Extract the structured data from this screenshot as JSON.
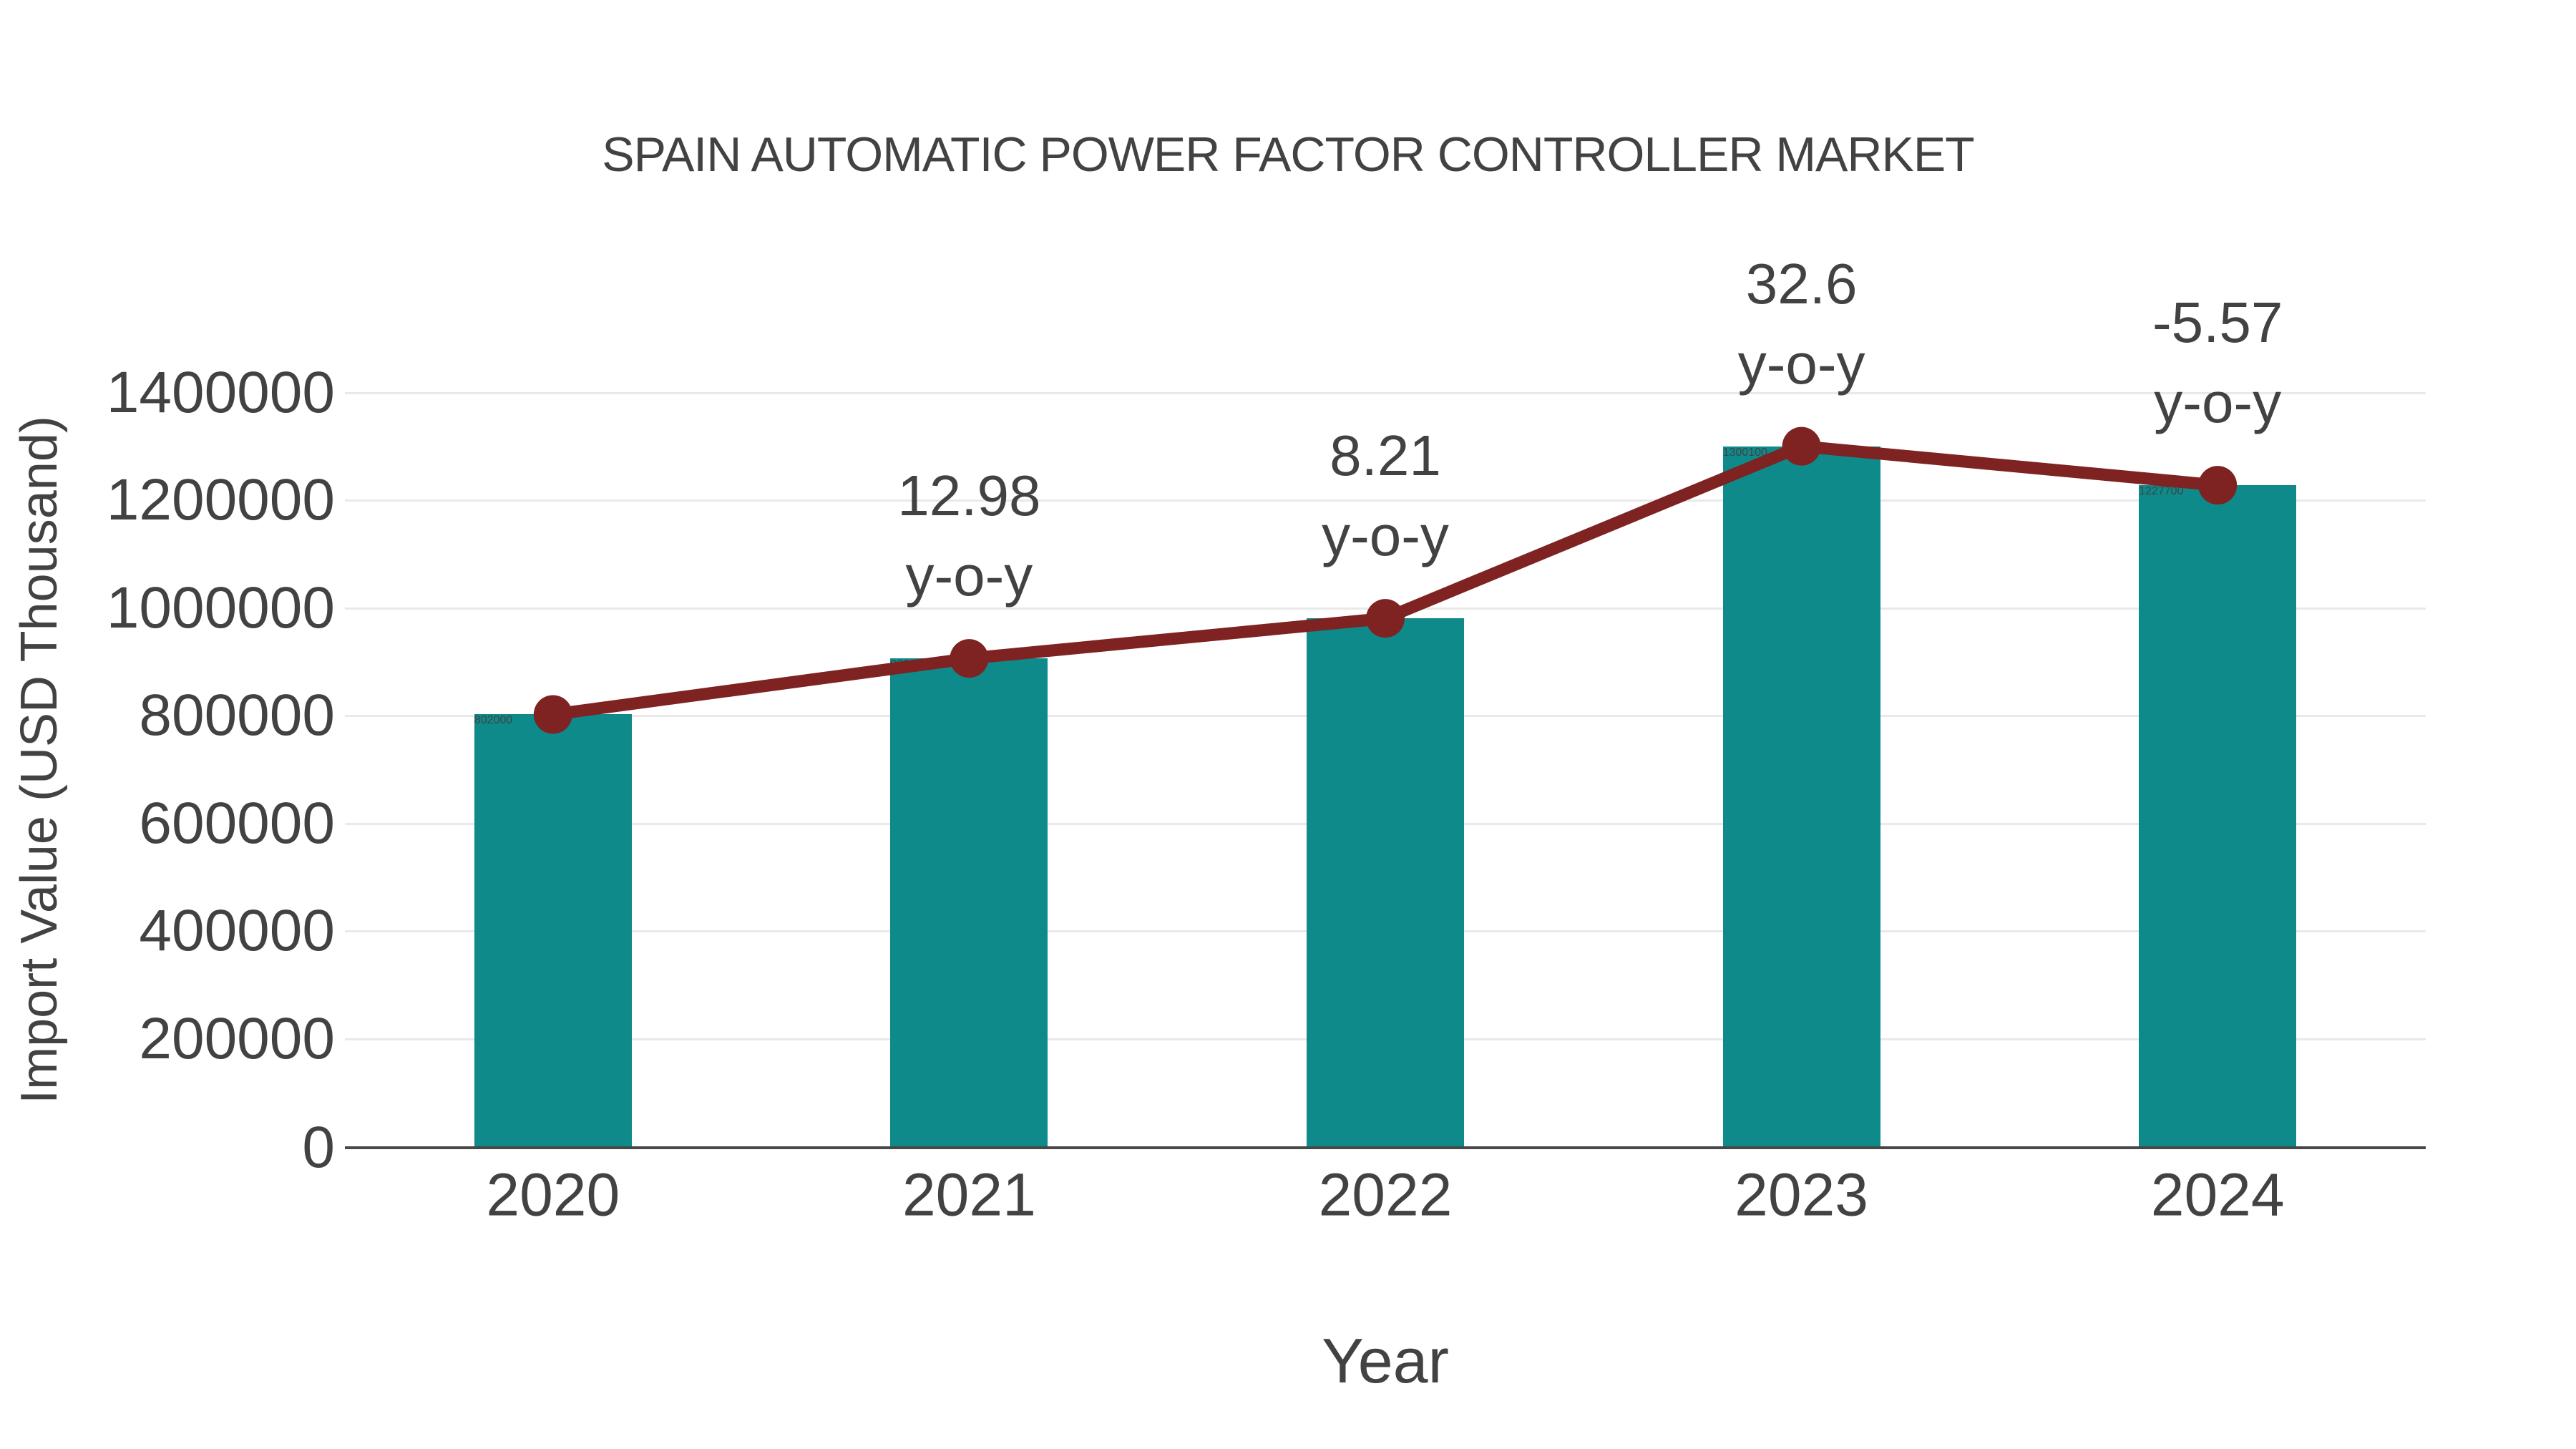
{
  "chart_data": {
    "type": "bar",
    "title": "SPAIN AUTOMATIC POWER FACTOR CONTROLLER MARKET",
    "xlabel": "Year",
    "ylabel": "Import Value (USD Thousand)",
    "categories": [
      "2020",
      "2021",
      "2022",
      "2023",
      "2024"
    ],
    "series": [
      {
        "name": "Import Value bars",
        "type": "bar",
        "values": [
          802000,
          906100,
          980500,
          1300100,
          1227700
        ]
      },
      {
        "name": "Import Value trend line",
        "type": "line",
        "values": [
          802000,
          906100,
          980500,
          1300100,
          1227700
        ]
      }
    ],
    "annotations": [
      {
        "category": "2021",
        "value": "12.98",
        "suffix": "y-o-y"
      },
      {
        "category": "2022",
        "value": "8.21",
        "suffix": "y-o-y"
      },
      {
        "category": "2023",
        "value": "32.6",
        "suffix": "y-o-y"
      },
      {
        "category": "2024",
        "value": "-5.57",
        "suffix": "y-o-y"
      }
    ],
    "ylim": [
      0,
      1400000
    ],
    "yticks": [
      0,
      200000,
      400000,
      600000,
      800000,
      1000000,
      1200000,
      1400000
    ],
    "grid": true,
    "legend": false,
    "colors": {
      "bar": "#0E8A8A",
      "line": "#7E2222",
      "marker": "#7E2222",
      "grid": "#E9E9E9",
      "axis": "#474747",
      "text": "#424242"
    }
  }
}
